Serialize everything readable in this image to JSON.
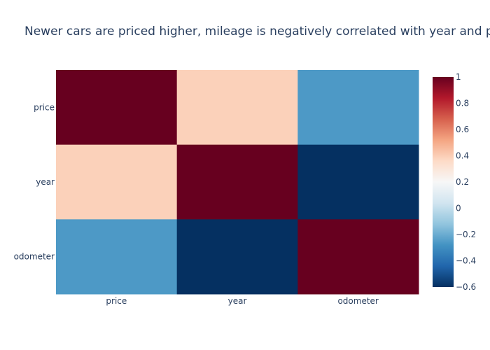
{
  "chart_data": {
    "type": "heatmap",
    "title": "Newer cars are priced higher, mileage is negatively correlated with year and price",
    "x_categories": [
      "price",
      "year",
      "odometer"
    ],
    "y_categories": [
      "price",
      "year",
      "odometer"
    ],
    "z": [
      [
        1.0,
        0.39,
        -0.26
      ],
      [
        0.39,
        1.0,
        -0.6
      ],
      [
        -0.26,
        -0.6,
        1.0
      ]
    ],
    "zmin": -0.6,
    "zmax": 1.0,
    "colorscale": "RdBu",
    "colorbar_ticks": [
      "1",
      "0.8",
      "0.6",
      "0.4",
      "0.2",
      "0",
      "−0.2",
      "−0.4",
      "−0.6"
    ],
    "colorbar_tick_values": [
      1,
      0.8,
      0.6,
      0.4,
      0.2,
      0,
      -0.2,
      -0.4,
      -0.6
    ]
  }
}
